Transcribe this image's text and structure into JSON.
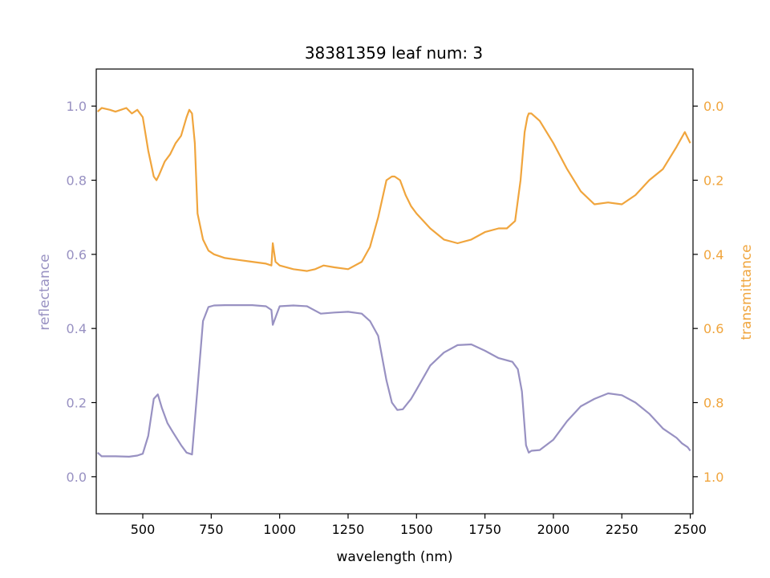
{
  "chart_data": {
    "type": "line",
    "title": "38381359 leaf num: 3",
    "xlabel": "wavelength (nm)",
    "ylabel_left": "reflectance",
    "ylabel_right": "transmittance",
    "xlim": [
      330,
      2510
    ],
    "ylim_left": [
      -0.1,
      1.1
    ],
    "ylim_right": [
      1.1,
      -0.1
    ],
    "right_axis_inverted": true,
    "grid": false,
    "x_ticks": [
      500,
      750,
      1000,
      1250,
      1500,
      1750,
      2000,
      2250,
      2500
    ],
    "x_tick_labels": [
      "500",
      "750",
      "1000",
      "1250",
      "1500",
      "1750",
      "2000",
      "2250",
      "2500"
    ],
    "left_ticks": [
      0.0,
      0.2,
      0.4,
      0.6,
      0.8,
      1.0
    ],
    "left_tick_labels": [
      "0.0",
      "0.2",
      "0.4",
      "0.6",
      "0.8",
      "1.0"
    ],
    "right_ticks": [
      0.0,
      0.2,
      0.4,
      0.6,
      0.8,
      1.0
    ],
    "right_tick_labels": [
      "0.0",
      "0.2",
      "0.4",
      "0.6",
      "0.8",
      "1.0"
    ],
    "colors": {
      "reflectance": "#9891c2",
      "transmittance": "#f0a53d",
      "axes": "#000000"
    },
    "series": [
      {
        "axis": "left",
        "color": "#9891c2",
        "x": [
          335,
          350,
          400,
          450,
          480,
          500,
          520,
          540,
          555,
          570,
          590,
          610,
          640,
          660,
          680,
          700,
          720,
          740,
          760,
          800,
          850,
          900,
          950,
          970,
          975,
          990,
          1000,
          1050,
          1100,
          1150,
          1200,
          1250,
          1300,
          1330,
          1360,
          1390,
          1410,
          1430,
          1450,
          1480,
          1500,
          1550,
          1600,
          1650,
          1700,
          1750,
          1800,
          1850,
          1870,
          1885,
          1900,
          1910,
          1920,
          1950,
          2000,
          2050,
          2100,
          2150,
          2200,
          2250,
          2300,
          2350,
          2400,
          2450,
          2470,
          2490,
          2500
        ],
        "values": [
          0.065,
          0.055,
          0.055,
          0.054,
          0.057,
          0.062,
          0.11,
          0.21,
          0.222,
          0.185,
          0.145,
          0.12,
          0.085,
          0.065,
          0.06,
          0.24,
          0.42,
          0.458,
          0.462,
          0.463,
          0.463,
          0.463,
          0.46,
          0.45,
          0.41,
          0.44,
          0.46,
          0.462,
          0.46,
          0.44,
          0.443,
          0.445,
          0.44,
          0.42,
          0.38,
          0.26,
          0.2,
          0.18,
          0.182,
          0.21,
          0.235,
          0.3,
          0.335,
          0.355,
          0.357,
          0.34,
          0.32,
          0.31,
          0.29,
          0.23,
          0.085,
          0.065,
          0.07,
          0.072,
          0.1,
          0.15,
          0.19,
          0.21,
          0.225,
          0.22,
          0.2,
          0.17,
          0.13,
          0.105,
          0.09,
          0.08,
          0.07
        ]
      },
      {
        "axis": "right",
        "color": "#f0a53d",
        "x": [
          335,
          350,
          380,
          400,
          420,
          440,
          460,
          480,
          500,
          520,
          540,
          550,
          560,
          580,
          600,
          620,
          640,
          660,
          670,
          680,
          690,
          700,
          720,
          740,
          760,
          800,
          850,
          900,
          950,
          970,
          975,
          985,
          1000,
          1050,
          1100,
          1130,
          1160,
          1200,
          1250,
          1300,
          1330,
          1360,
          1390,
          1410,
          1420,
          1440,
          1460,
          1480,
          1500,
          1550,
          1600,
          1650,
          1700,
          1750,
          1800,
          1830,
          1860,
          1880,
          1895,
          1905,
          1910,
          1920,
          1950,
          2000,
          2050,
          2100,
          2150,
          2200,
          2250,
          2300,
          2350,
          2400,
          2450,
          2480,
          2500
        ],
        "values": [
          0.015,
          0.005,
          0.01,
          0.015,
          0.01,
          0.005,
          0.02,
          0.01,
          0.03,
          0.12,
          0.19,
          0.2,
          0.185,
          0.15,
          0.13,
          0.1,
          0.08,
          0.03,
          0.01,
          0.02,
          0.1,
          0.29,
          0.36,
          0.39,
          0.4,
          0.41,
          0.415,
          0.42,
          0.425,
          0.43,
          0.37,
          0.42,
          0.43,
          0.44,
          0.445,
          0.44,
          0.43,
          0.435,
          0.44,
          0.42,
          0.38,
          0.3,
          0.2,
          0.19,
          0.19,
          0.2,
          0.24,
          0.27,
          0.29,
          0.33,
          0.36,
          0.37,
          0.36,
          0.34,
          0.33,
          0.33,
          0.31,
          0.2,
          0.07,
          0.03,
          0.02,
          0.02,
          0.04,
          0.1,
          0.17,
          0.23,
          0.265,
          0.26,
          0.265,
          0.24,
          0.2,
          0.17,
          0.11,
          0.07,
          0.1
        ]
      }
    ]
  }
}
